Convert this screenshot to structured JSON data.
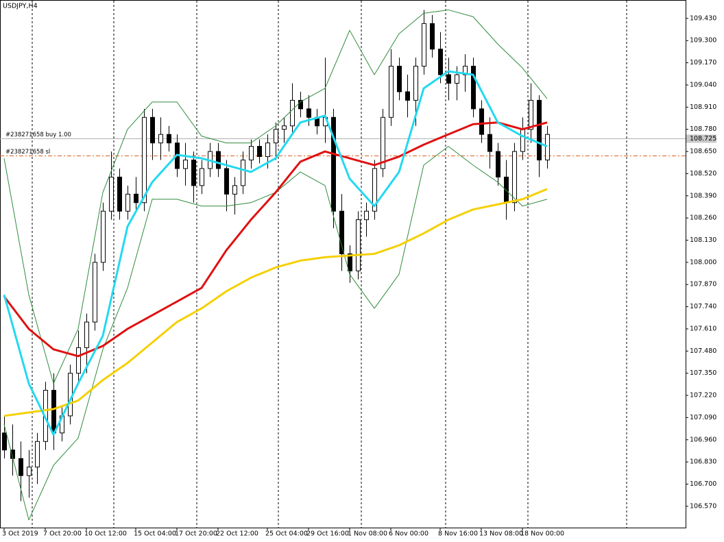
{
  "chart_data": {
    "type": "candlestick",
    "title": "USDJPY,H4",
    "categories": [
      "3 Oct 2019",
      null,
      null,
      null,
      null,
      "7 Oct 20:00",
      null,
      null,
      null,
      null,
      "10 Oct 12:00",
      null,
      null,
      null,
      null,
      null,
      "15 Oct 04:00",
      null,
      null,
      null,
      null,
      "17 Oct 20:00",
      null,
      null,
      null,
      null,
      "22 Oct 12:00",
      null,
      null,
      null,
      null,
      null,
      "25 Oct 04:00",
      null,
      null,
      null,
      null,
      "29 Oct 16:00",
      null,
      null,
      null,
      null,
      "1 Nov 08:00",
      null,
      null,
      null,
      null,
      "6 Nov 00:00",
      null,
      null,
      null,
      null,
      null,
      "8 Nov 16:00",
      null,
      null,
      null,
      null,
      "13 Nov 08:00",
      null,
      null,
      null,
      null,
      "18 Nov 00:00",
      null,
      null,
      null
    ],
    "open": [
      107.0,
      106.9,
      106.85,
      106.75,
      106.8,
      106.95,
      107.25,
      107.0,
      107.1,
      107.35,
      107.5,
      107.65,
      108.0,
      108.3,
      108.5,
      108.3,
      108.4,
      108.35,
      108.85,
      108.7,
      108.75,
      108.7,
      108.55,
      108.6,
      108.45,
      108.55,
      108.65,
      108.55,
      108.4,
      108.45,
      108.6,
      108.68,
      108.62,
      108.7,
      108.78,
      108.8,
      108.95,
      108.9,
      108.85,
      108.8,
      108.85,
      108.3,
      108.05,
      107.95,
      108.25,
      108.3,
      108.55,
      108.85,
      109.15,
      109.0,
      108.95,
      109.15,
      109.4,
      109.25,
      109.1,
      109.05,
      109.1,
      109.15,
      108.9,
      108.75,
      108.65,
      108.5,
      108.35,
      108.65,
      108.78,
      108.95,
      108.6
    ],
    "high": [
      107.1,
      107.05,
      106.95,
      106.9,
      107.0,
      107.3,
      107.35,
      107.15,
      107.4,
      107.6,
      107.7,
      108.05,
      108.35,
      108.65,
      108.55,
      108.45,
      108.5,
      108.9,
      108.9,
      108.85,
      108.8,
      108.75,
      108.7,
      108.65,
      108.6,
      108.7,
      108.7,
      108.6,
      108.5,
      108.65,
      108.72,
      108.72,
      108.75,
      108.82,
      108.85,
      109.05,
      109.0,
      108.98,
      108.9,
      109.2,
      108.9,
      108.4,
      108.1,
      108.3,
      108.35,
      108.6,
      108.9,
      109.25,
      109.2,
      109.1,
      109.2,
      109.48,
      109.45,
      109.35,
      109.2,
      109.15,
      109.22,
      109.2,
      108.95,
      108.85,
      108.7,
      108.6,
      108.7,
      108.85,
      109.05,
      108.98,
      108.8
    ],
    "low": [
      106.85,
      106.75,
      106.6,
      106.62,
      106.7,
      106.9,
      106.9,
      106.95,
      107.05,
      107.3,
      107.35,
      107.6,
      107.95,
      108.25,
      108.25,
      108.25,
      108.3,
      108.3,
      108.6,
      108.6,
      108.65,
      108.5,
      108.45,
      108.35,
      108.4,
      108.5,
      108.5,
      108.3,
      108.28,
      108.4,
      108.55,
      108.58,
      108.55,
      108.6,
      108.7,
      108.75,
      108.85,
      108.8,
      108.75,
      108.7,
      108.2,
      107.95,
      107.88,
      107.9,
      108.15,
      108.25,
      108.5,
      108.8,
      108.95,
      108.85,
      108.8,
      109.1,
      109.2,
      109.05,
      108.95,
      108.95,
      109.0,
      108.85,
      108.7,
      108.55,
      108.45,
      108.25,
      108.3,
      108.6,
      108.7,
      108.5,
      108.55
    ],
    "close": [
      106.9,
      106.85,
      106.75,
      106.8,
      106.95,
      107.25,
      107.0,
      107.1,
      107.35,
      107.5,
      107.65,
      108.0,
      108.3,
      108.5,
      108.3,
      108.4,
      108.35,
      108.85,
      108.7,
      108.75,
      108.7,
      108.55,
      108.6,
      108.45,
      108.55,
      108.65,
      108.55,
      108.4,
      108.45,
      108.6,
      108.68,
      108.62,
      108.7,
      108.78,
      108.8,
      108.95,
      108.9,
      108.85,
      108.8,
      108.85,
      108.3,
      108.05,
      107.95,
      108.25,
      108.3,
      108.55,
      108.85,
      109.15,
      109.0,
      108.95,
      109.15,
      109.4,
      109.25,
      109.1,
      109.05,
      109.1,
      109.15,
      108.9,
      108.75,
      108.65,
      108.5,
      108.35,
      108.65,
      108.78,
      108.95,
      108.6,
      108.75
    ],
    "indicator_x": [
      0,
      3,
      6,
      9,
      12,
      15,
      18,
      21,
      24,
      27,
      30,
      33,
      36,
      39,
      42,
      45,
      48,
      51,
      54,
      57,
      60,
      63,
      66
    ],
    "indicators": [
      {
        "color": "#2e8b3c",
        "width": 1,
        "values": [
          108.61,
          107.81,
          107.29,
          107.61,
          108.41,
          108.78,
          108.94,
          108.94,
          108.74,
          108.7,
          108.7,
          108.8,
          108.94,
          109.02,
          109.36,
          109.1,
          109.34,
          109.46,
          109.48,
          109.44,
          109.28,
          109.14,
          108.96
        ]
      },
      {
        "color": "#2e8b3c",
        "width": 1,
        "values": [
          107.05,
          106.49,
          106.81,
          106.97,
          107.49,
          107.85,
          108.37,
          108.37,
          108.33,
          108.33,
          108.35,
          108.41,
          108.53,
          108.45,
          107.93,
          107.73,
          107.93,
          108.57,
          108.68,
          108.57,
          108.47,
          108.33,
          108.37
        ]
      },
      {
        "color": "#f5d000",
        "width": 3,
        "values": [
          107.1,
          107.12,
          107.14,
          107.19,
          107.31,
          107.41,
          107.53,
          107.65,
          107.73,
          107.83,
          107.91,
          107.97,
          108.01,
          108.03,
          108.04,
          108.05,
          108.1,
          108.17,
          108.25,
          108.31,
          108.34,
          108.37,
          108.43
        ]
      },
      {
        "color": "#e01010",
        "width": 3,
        "values": [
          107.8,
          107.61,
          107.49,
          107.45,
          107.51,
          107.61,
          107.69,
          107.77,
          107.85,
          108.07,
          108.25,
          108.41,
          108.59,
          108.65,
          108.61,
          108.57,
          108.62,
          108.69,
          108.75,
          108.81,
          108.82,
          108.78,
          108.82
        ]
      },
      {
        "color": "#22d9f0",
        "width": 3,
        "values": [
          107.81,
          107.29,
          106.99,
          107.29,
          107.57,
          108.21,
          108.47,
          108.63,
          108.61,
          108.57,
          108.53,
          108.61,
          108.82,
          108.86,
          108.49,
          108.33,
          108.53,
          109.02,
          109.12,
          109.1,
          108.82,
          108.74,
          108.68
        ]
      }
    ],
    "orders": [
      {
        "label": "#238271658 buy 1.00",
        "price": 108.725,
        "color": "#b0b0b0",
        "dash": "none"
      },
      {
        "label": "#238271658 sl",
        "price": 108.627,
        "color": "#e05a1a",
        "dash": "6 3 2 3"
      }
    ],
    "price_label": {
      "value": 108.725,
      "label": "108.725"
    },
    "ylim": [
      106.445,
      109.538
    ],
    "yticks": [
      {
        "value": 109.43,
        "label": "109.430"
      },
      {
        "value": 109.3,
        "label": "109.300"
      },
      {
        "value": 109.17,
        "label": "109.170"
      },
      {
        "value": 109.04,
        "label": "109.040"
      },
      {
        "value": 108.91,
        "label": "108.910"
      },
      {
        "value": 108.78,
        "label": "108.780"
      },
      {
        "value": 108.65,
        "label": "108.650"
      },
      {
        "value": 108.52,
        "label": "108.520"
      },
      {
        "value": 108.39,
        "label": "108.390"
      },
      {
        "value": 108.26,
        "label": "108.260"
      },
      {
        "value": 108.13,
        "label": "108.130"
      },
      {
        "value": 108.0,
        "label": "108.000"
      },
      {
        "value": 107.87,
        "label": "107.870"
      },
      {
        "value": 107.74,
        "label": "107.740"
      },
      {
        "value": 107.61,
        "label": "107.610"
      },
      {
        "value": 107.48,
        "label": "107.480"
      },
      {
        "value": 107.35,
        "label": "107.350"
      },
      {
        "value": 107.22,
        "label": "107.220"
      },
      {
        "value": 107.09,
        "label": "107.090"
      },
      {
        "value": 106.96,
        "label": "106.960"
      },
      {
        "value": 106.83,
        "label": "106.830"
      },
      {
        "value": 106.7,
        "label": "106.700"
      },
      {
        "value": 106.57,
        "label": "106.570"
      }
    ],
    "bull_color": "#ffffff",
    "bear_color": "#000000",
    "wick_color": "#000000"
  }
}
